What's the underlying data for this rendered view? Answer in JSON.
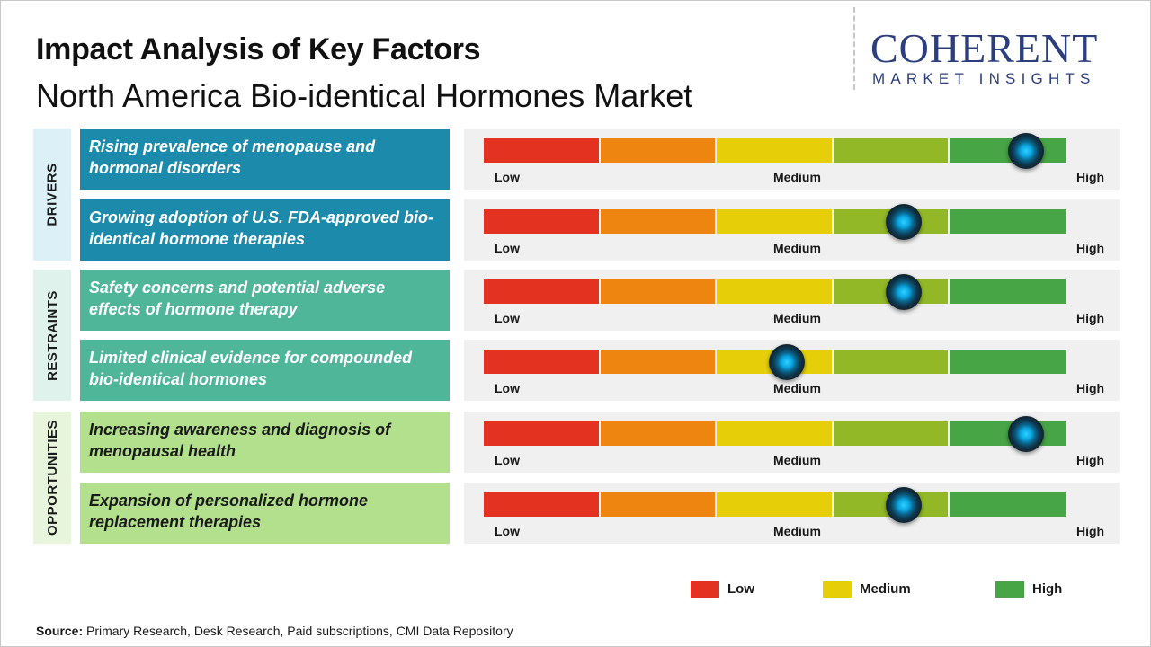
{
  "header": {
    "title": "Impact Analysis of Key Factors",
    "subtitle": "North America Bio-identical Hormones Market"
  },
  "logo": {
    "main": "COHERENT",
    "sub": "MARKET INSIGHTS",
    "color": "#2c3e7e"
  },
  "colors": {
    "drivers_tab": "#dcf0f8",
    "drivers_box": "#1b8aab",
    "restraints_tab": "#dff2ec",
    "restraints_box": "#4fb69a",
    "opportunities_tab": "#e6f5dc",
    "opportunities_box": "#b2e08d",
    "scale": [
      "#e3321f",
      "#ee8511",
      "#e6cf09",
      "#92b827",
      "#47a546"
    ]
  },
  "chart_data": {
    "type": "gauge",
    "scale_labels": [
      "Low",
      "Medium",
      "High"
    ],
    "scale_segments": 5,
    "groups": [
      {
        "name": "DRIVERS",
        "factors": [
          {
            "label": "Rising prevalence of menopause and hormonal disorders",
            "impact": 0.93
          },
          {
            "label": "Growing adoption of U.S. FDA-approved bio-identical hormone therapies",
            "impact": 0.72
          }
        ]
      },
      {
        "name": "RESTRAINTS",
        "factors": [
          {
            "label": "Safety concerns and potential adverse effects of hormone therapy",
            "impact": 0.72
          },
          {
            "label": "Limited clinical evidence for compounded bio-identical hormones",
            "impact": 0.52
          }
        ]
      },
      {
        "name": "OPPORTUNITIES",
        "factors": [
          {
            "label": "Increasing awareness and diagnosis of menopausal health",
            "impact": 0.93
          },
          {
            "label": "Expansion of personalized hormone replacement therapies",
            "impact": 0.72
          }
        ]
      }
    ],
    "legend": [
      {
        "label": "Low",
        "color": "#e3321f"
      },
      {
        "label": "Medium",
        "color": "#e6cf09"
      },
      {
        "label": "High",
        "color": "#47a546"
      }
    ]
  },
  "source": {
    "label": "Source:",
    "text": " Primary Research, Desk Research, Paid subscriptions, CMI Data Repository"
  }
}
